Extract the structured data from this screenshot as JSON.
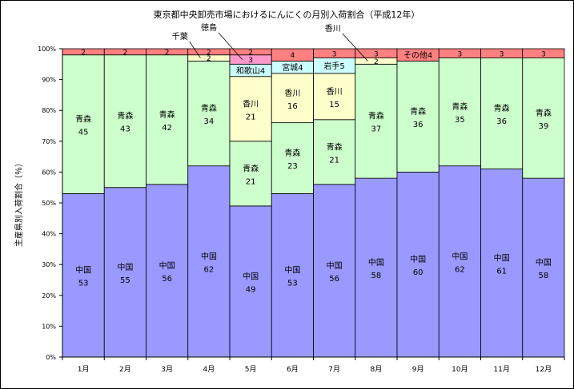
{
  "chart_data": {
    "type": "bar",
    "stacked": true,
    "title": "東京都中央卸売市場におけるにんにくの月別入荷割合（平成12年）",
    "ylabel": "主産県別入荷割合（％）",
    "xlabel": "",
    "ylim": [
      0,
      100
    ],
    "yticks": [
      "0%",
      "10%",
      "20%",
      "30%",
      "40%",
      "50%",
      "60%",
      "70%",
      "80%",
      "90%",
      "100%"
    ],
    "categories": [
      "1月",
      "2月",
      "3月",
      "4月",
      "5月",
      "6月",
      "7月",
      "8月",
      "9月",
      "10月",
      "11月",
      "12月"
    ],
    "grid": false,
    "colors": {
      "中国": "#9999ff",
      "青森": "#ccffcc",
      "香川": "#ffffcc",
      "千葉": "#ffffcc",
      "和歌山": "#ccffff",
      "宮城": "#ccffff",
      "岩手": "#ccffff",
      "徳島": "#ff99cc",
      "その他": "#ff8080"
    },
    "months": [
      {
        "segments": [
          {
            "name": "中国",
            "value": 53
          },
          {
            "name": "青森",
            "value": 45
          },
          {
            "name": "その他",
            "value": 2
          }
        ]
      },
      {
        "segments": [
          {
            "name": "中国",
            "value": 55
          },
          {
            "name": "青森",
            "value": 43
          },
          {
            "name": "その他",
            "value": 2
          }
        ]
      },
      {
        "segments": [
          {
            "name": "中国",
            "value": 56
          },
          {
            "name": "青森",
            "value": 42
          },
          {
            "name": "その他",
            "value": 2
          }
        ]
      },
      {
        "segments": [
          {
            "name": "中国",
            "value": 62
          },
          {
            "name": "青森",
            "value": 34
          },
          {
            "name": "千葉",
            "value": 2
          },
          {
            "name": "その他",
            "value": 2
          }
        ]
      },
      {
        "segments": [
          {
            "name": "中国",
            "value": 49
          },
          {
            "name": "青森",
            "value": 21
          },
          {
            "name": "香川",
            "value": 21
          },
          {
            "name": "和歌山",
            "value": 4
          },
          {
            "name": "徳島",
            "value": 3
          },
          {
            "name": "その他",
            "value": 2
          }
        ]
      },
      {
        "segments": [
          {
            "name": "中国",
            "value": 53
          },
          {
            "name": "青森",
            "value": 23
          },
          {
            "name": "香川",
            "value": 16
          },
          {
            "name": "宮城",
            "value": 4
          },
          {
            "name": "その他",
            "value": 4
          }
        ]
      },
      {
        "segments": [
          {
            "name": "中国",
            "value": 56
          },
          {
            "name": "青森",
            "value": 21
          },
          {
            "name": "香川",
            "value": 15
          },
          {
            "name": "岩手",
            "value": 5
          },
          {
            "name": "その他",
            "value": 3
          }
        ]
      },
      {
        "segments": [
          {
            "name": "中国",
            "value": 58
          },
          {
            "name": "青森",
            "value": 37
          },
          {
            "name": "香川",
            "value": 2
          },
          {
            "name": "その他",
            "value": 3
          }
        ]
      },
      {
        "segments": [
          {
            "name": "中国",
            "value": 60
          },
          {
            "name": "青森",
            "value": 36
          },
          {
            "name": "その他",
            "value": 4
          }
        ]
      },
      {
        "segments": [
          {
            "name": "中国",
            "value": 62
          },
          {
            "name": "青森",
            "value": 35
          },
          {
            "name": "その他",
            "value": 3
          }
        ]
      },
      {
        "segments": [
          {
            "name": "中国",
            "value": 61
          },
          {
            "name": "青森",
            "value": 36
          },
          {
            "name": "その他",
            "value": 3
          }
        ]
      },
      {
        "segments": [
          {
            "name": "中国",
            "value": 58
          },
          {
            "name": "青森",
            "value": 39
          },
          {
            "name": "その他",
            "value": 3
          }
        ]
      }
    ],
    "callouts": [
      {
        "text": "千葉",
        "month_index": 3,
        "segment": "千葉"
      },
      {
        "text": "徳島",
        "month_index": 4,
        "segment": "徳島"
      },
      {
        "text": "香川",
        "month_index": 7,
        "segment": "香川"
      }
    ]
  }
}
